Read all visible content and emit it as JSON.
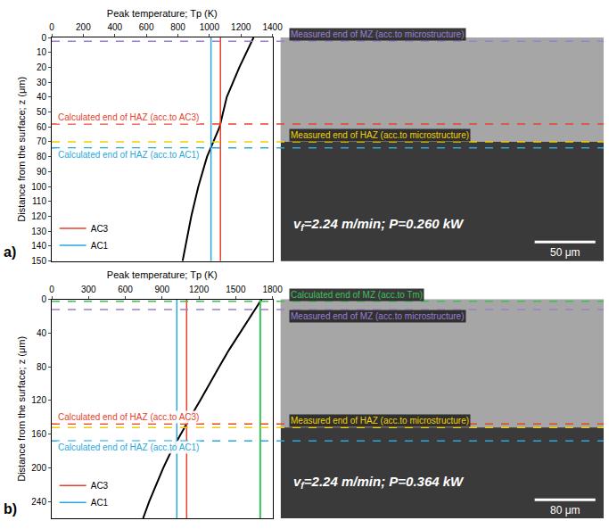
{
  "chart_data": [
    {
      "panel": "a)",
      "type": "line",
      "x_label": "Peak temperature; Tp (K)",
      "y_label": "Distance from the surface; z (μm)",
      "xlim": [
        0,
        1400
      ],
      "xticks": [
        0,
        200,
        400,
        600,
        800,
        1000,
        1200,
        1400
      ],
      "ylim": [
        0,
        150
      ],
      "yticks": [
        0,
        10,
        20,
        30,
        40,
        50,
        60,
        70,
        80,
        90,
        100,
        110,
        120,
        130,
        140,
        150
      ],
      "grid": false,
      "legend": "lower left",
      "series": [
        {
          "color": "#000000",
          "line_style": "solid",
          "x": [
            1280,
            1190,
            1110,
            1065,
            985,
            930,
            885,
            830
          ],
          "values": [
            0,
            20,
            40,
            60,
            80,
            100,
            120,
            150
          ]
        },
        {
          "name": "AC3",
          "color": "#e8412c",
          "line_style": "solid",
          "x": [
            1070,
            1070
          ],
          "values": [
            0,
            150
          ]
        },
        {
          "name": "AC1",
          "color": "#29a8e0",
          "line_style": "solid",
          "x": [
            1010,
            1010
          ],
          "values": [
            0,
            150
          ]
        }
      ],
      "dashed_lines": {
        "measured_MZ": {
          "text": "Measured end of MZ (acc.to microstructure)",
          "z": 2.5,
          "color": "#9b7fd4"
        },
        "calc_HAZ_AC3": {
          "text": "Calculated end of HAZ (acc.to AC3)",
          "z": 58,
          "color": "#e8412c"
        },
        "measured_HAZ": {
          "text": "Measured end of HAZ (acc.to microstructure)",
          "z": 70,
          "color": "#f0d000"
        },
        "calc_HAZ_AC1": {
          "text": "Calculated end of HAZ (acc.to AC1)",
          "z": 74,
          "color": "#29a8e0"
        }
      },
      "micrograph": {
        "speed_symbol": "v",
        "speed_subscript": "f",
        "process_text": "=2.24 m/min; P=0.260 kW",
        "scale_bar": "50 μm"
      }
    },
    {
      "panel": "b)",
      "type": "line",
      "x_label": "Peak temperature; Tp (K)",
      "y_label": "Distance from the surface; z (μm)",
      "xlim": [
        0,
        1800
      ],
      "xticks": [
        0,
        300,
        600,
        900,
        1200,
        1500,
        1800
      ],
      "ylim": [
        0,
        260
      ],
      "yticks": [
        0,
        40,
        80,
        120,
        160,
        200,
        240
      ],
      "grid": false,
      "legend": "lower left",
      "series": [
        {
          "color": "#000000",
          "line_style": "solid",
          "x": [
            1710,
            1620,
            1530,
            1445,
            1365,
            1290,
            1210,
            1130,
            1050,
            975,
            910,
            850,
            795,
            745
          ],
          "values": [
            0,
            20,
            40,
            60,
            80,
            100,
            120,
            140,
            160,
            180,
            200,
            220,
            240,
            260
          ]
        },
        {
          "color": "#3cc05a",
          "line_style": "solid",
          "x": [
            1700,
            1700
          ],
          "values": [
            0,
            260
          ]
        },
        {
          "name": "AC3",
          "color": "#e8412c",
          "line_style": "solid",
          "x": [
            1100,
            1100
          ],
          "values": [
            0,
            260
          ]
        },
        {
          "name": "AC1",
          "color": "#29a8e0",
          "line_style": "solid",
          "x": [
            1020,
            1020
          ],
          "values": [
            0,
            260
          ]
        }
      ],
      "dashed_lines": {
        "calc_MZ": {
          "text": "Calculated end of MZ (acc.to Tm)",
          "z": 2,
          "color": "#3cc05a"
        },
        "measured_MZ": {
          "text": "Measured end of MZ (acc.to microstructure)",
          "z": 12,
          "color": "#9b7fd4"
        },
        "calc_HAZ_AC3": {
          "text": "Calculated end of HAZ (acc.to AC3)",
          "z": 148,
          "color": "#e8412c"
        },
        "measured_HAZ": {
          "text": "Measured end of HAZ (acc.to microstructure)",
          "z": 152,
          "color": "#f0d000"
        },
        "calc_HAZ_AC1": {
          "text": "Calculated end of HAZ (acc.to AC1)",
          "z": 168,
          "color": "#29a8e0"
        }
      },
      "micrograph": {
        "speed_symbol": "v",
        "speed_subscript": "f",
        "process_text": "=2.24 m/min; P=0.364 kW",
        "scale_bar": "80 μm"
      }
    }
  ]
}
